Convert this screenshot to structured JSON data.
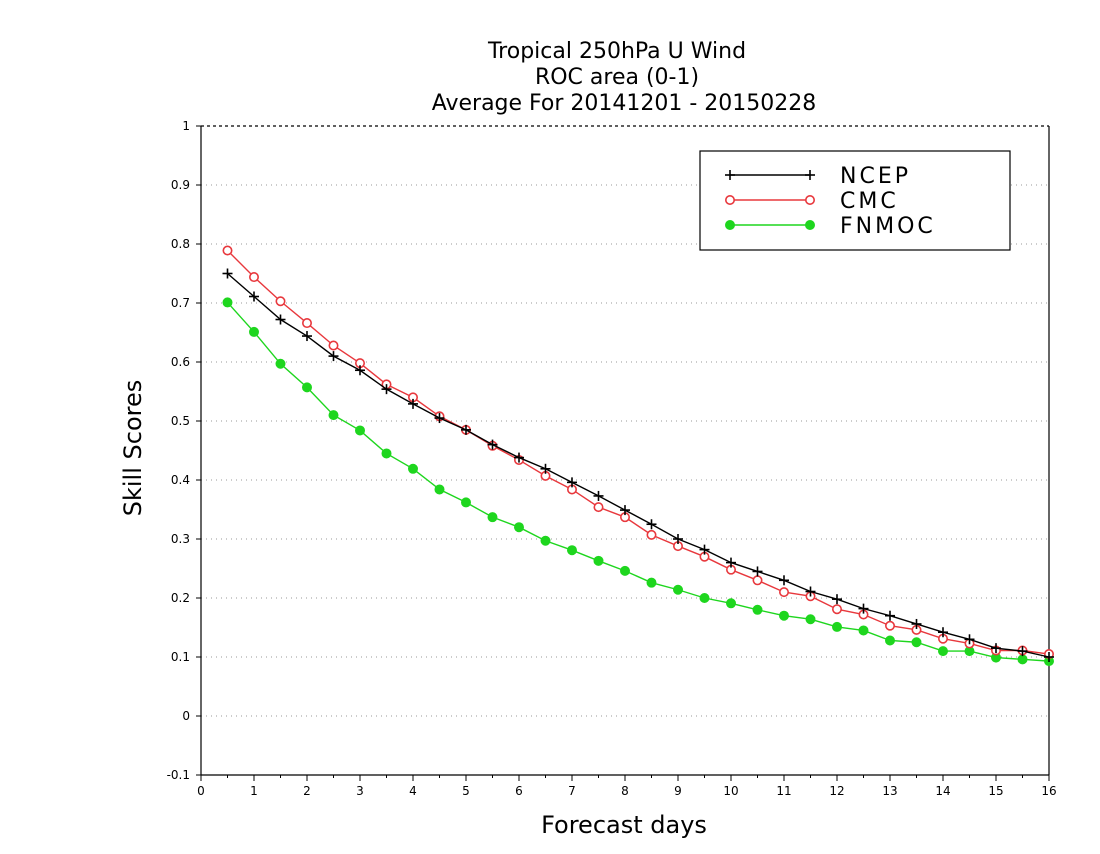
{
  "chart_data": {
    "type": "line",
    "title": [
      "Tropical 250hPa U Wind",
      "ROC area (0-1)",
      "Average For 20141201 - 20150228"
    ],
    "xlabel": "Forecast days",
    "ylabel": "Skill Scores",
    "xlim": [
      0,
      16
    ],
    "ylim": [
      -0.1,
      1
    ],
    "x_ticks": [
      0,
      1,
      2,
      3,
      4,
      5,
      6,
      7,
      8,
      9,
      10,
      11,
      12,
      13,
      14,
      15,
      16
    ],
    "y_ticks": [
      -0.1,
      0,
      0.1,
      0.2,
      0.3,
      0.4,
      0.5,
      0.6,
      0.7,
      0.8,
      0.9,
      1
    ],
    "y_tick_labels": [
      "-0.1",
      "0",
      "0.1",
      "0.2",
      "0.3",
      "0.4",
      "0.5",
      "0.6",
      "0.7",
      "0.8",
      "0.9",
      "1"
    ],
    "grid": "horizontal dotted",
    "legend_position": "top-right",
    "x": [
      0.5,
      1,
      1.5,
      2,
      2.5,
      3,
      3.5,
      4,
      4.5,
      5,
      5.5,
      6,
      6.5,
      7,
      7.5,
      8,
      8.5,
      9,
      9.5,
      10,
      10.5,
      11,
      11.5,
      12,
      12.5,
      13,
      13.5,
      14,
      14.5,
      15,
      15.5,
      16
    ],
    "series": [
      {
        "name": "NCEP",
        "color": "#000000",
        "marker": "plus",
        "values": [
          0.75,
          0.711,
          0.672,
          0.644,
          0.61,
          0.586,
          0.554,
          0.529,
          0.505,
          0.485,
          0.46,
          0.438,
          0.419,
          0.396,
          0.373,
          0.349,
          0.325,
          0.3,
          0.282,
          0.26,
          0.245,
          0.23,
          0.211,
          0.198,
          0.182,
          0.17,
          0.156,
          0.142,
          0.13,
          0.115,
          0.11,
          0.1
        ]
      },
      {
        "name": "CMC",
        "color": "#e8383d",
        "marker": "open-circle",
        "values": [
          0.789,
          0.744,
          0.703,
          0.666,
          0.628,
          0.598,
          0.562,
          0.54,
          0.508,
          0.485,
          0.458,
          0.434,
          0.407,
          0.384,
          0.354,
          0.337,
          0.307,
          0.288,
          0.27,
          0.248,
          0.23,
          0.21,
          0.203,
          0.181,
          0.172,
          0.153,
          0.146,
          0.131,
          0.123,
          0.111,
          0.111,
          0.105
        ]
      },
      {
        "name": "FNMOC",
        "color": "#1ed61e",
        "marker": "filled-circle",
        "values": [
          0.701,
          0.651,
          0.597,
          0.557,
          0.51,
          0.484,
          0.445,
          0.419,
          0.384,
          0.362,
          0.337,
          0.32,
          0.297,
          0.281,
          0.263,
          0.246,
          0.226,
          0.214,
          0.2,
          0.191,
          0.18,
          0.17,
          0.164,
          0.151,
          0.145,
          0.128,
          0.125,
          0.11,
          0.11,
          0.099,
          0.096,
          0.093
        ]
      }
    ]
  }
}
